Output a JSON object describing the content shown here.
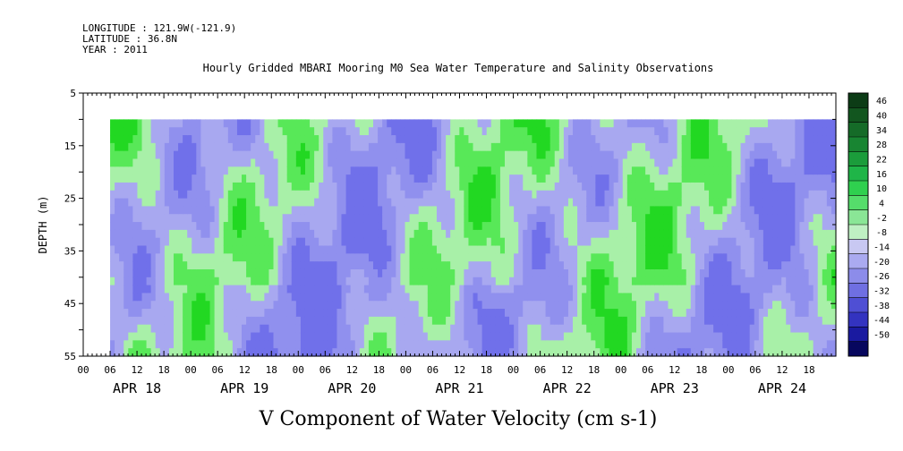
{
  "header": {
    "longitude": "LONGITUDE : 121.9W(-121.9)",
    "latitude": "LATITUDE : 36.8N",
    "year": "YEAR : 2011"
  },
  "chart_data": {
    "type": "heatmap",
    "title": "Hourly Gridded MBARI Mooring M0 Sea Water Temperature and Salinity Observations",
    "xlabel": "V Component of Water Velocity (cm s-1)",
    "ylabel": "DEPTH (m)",
    "ylim": [
      55,
      5
    ],
    "y_ticks": [
      "5",
      "15",
      "25",
      "35",
      "45",
      "55"
    ],
    "x_hour_ticks": [
      "00",
      "06",
      "12",
      "18",
      "00",
      "06",
      "12",
      "18",
      "00",
      "06",
      "12",
      "18",
      "00",
      "06",
      "12",
      "18",
      "00",
      "06",
      "12",
      "18",
      "00",
      "06",
      "12",
      "18",
      "00",
      "06",
      "12",
      "18"
    ],
    "x_days": [
      "APR 18",
      "APR 19",
      "APR 20",
      "APR 21",
      "APR 22",
      "APR 23",
      "APR 24"
    ],
    "data_depth_range": [
      10,
      55
    ],
    "data_start_hour": 6,
    "colorbar": {
      "labels": [
        "46",
        "40",
        "34",
        "28",
        "22",
        "16",
        "10",
        "4",
        "-2",
        "-8",
        "-14",
        "-20",
        "-26",
        "-32",
        "-38",
        "-44",
        "-50"
      ],
      "colors": [
        "#0c3c16",
        "#12561f",
        "#156b28",
        "#188532",
        "#1b9c3b",
        "#1fb548",
        "#2fd04f",
        "#55dd6b",
        "#8ae696",
        "#bff0c3",
        "#c8c8f2",
        "#aaaaf0",
        "#8c8cea",
        "#6f6fe2",
        "#4f4fd4",
        "#3333c0",
        "#1a1aa0",
        "#07075e"
      ],
      "sample_colors": {
        "light_green": "#a8f0a8",
        "green": "#58e858",
        "bright_green": "#22d822",
        "light_blue": "#a8a8f0",
        "blue": "#9090ee",
        "deep_blue": "#7070ea"
      }
    }
  }
}
